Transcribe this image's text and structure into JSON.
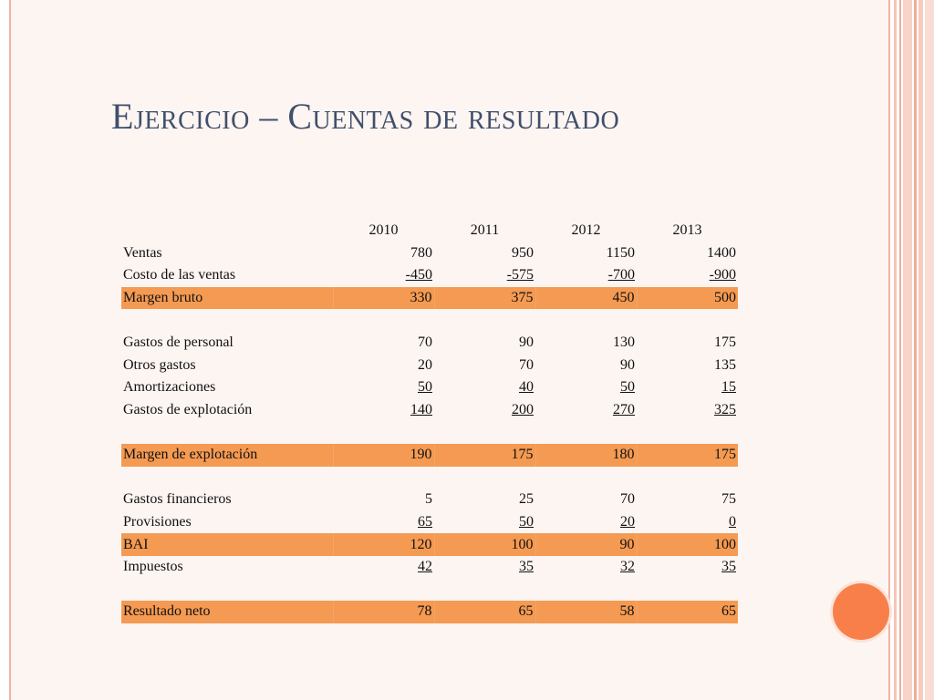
{
  "slide": {
    "title": "Ejercicio – Cuentas de resultado",
    "accent_color": "#f59a52",
    "circle_color": "#f97f4a"
  },
  "table": {
    "columns": [
      "2010",
      "2011",
      "2012",
      "2013"
    ],
    "rows": [
      {
        "label": "Ventas",
        "values": [
          "780",
          "950",
          "1150",
          "1400"
        ],
        "highlight": false,
        "underline": false
      },
      {
        "label": "Costo de las ventas",
        "values": [
          "-450",
          "-575",
          "-700",
          "-900"
        ],
        "highlight": false,
        "underline": true
      },
      {
        "label": "Margen bruto",
        "values": [
          "330",
          "375",
          "450",
          "500"
        ],
        "highlight": true,
        "underline": false
      },
      {
        "label": "",
        "values": [
          "",
          "",
          "",
          ""
        ],
        "highlight": false,
        "underline": false
      },
      {
        "label": "Gastos de personal",
        "values": [
          "70",
          "90",
          "130",
          "175"
        ],
        "highlight": false,
        "underline": false
      },
      {
        "label": "Otros gastos",
        "values": [
          "20",
          "70",
          "90",
          "135"
        ],
        "highlight": false,
        "underline": false
      },
      {
        "label": "Amortizaciones",
        "values": [
          "50",
          "40",
          "50",
          "15"
        ],
        "highlight": false,
        "underline": true
      },
      {
        "label": "Gastos de explotación",
        "values": [
          "140",
          "200",
          "270",
          "325"
        ],
        "highlight": false,
        "underline": true
      },
      {
        "label": "",
        "values": [
          "",
          "",
          "",
          ""
        ],
        "highlight": false,
        "underline": false
      },
      {
        "label": "Margen de explotación",
        "values": [
          "190",
          "175",
          "180",
          "175"
        ],
        "highlight": true,
        "underline": false
      },
      {
        "label": "",
        "values": [
          "",
          "",
          "",
          ""
        ],
        "highlight": false,
        "underline": false
      },
      {
        "label": "Gastos financieros",
        "values": [
          "5",
          "25",
          "70",
          "75"
        ],
        "highlight": false,
        "underline": false
      },
      {
        "label": "Provisiones",
        "values": [
          "65",
          "50",
          "20",
          "0"
        ],
        "highlight": false,
        "underline": true
      },
      {
        "label": "BAI",
        "values": [
          "120",
          "100",
          "90",
          "100"
        ],
        "highlight": true,
        "underline": false
      },
      {
        "label": "Impuestos",
        "values": [
          "42",
          "35",
          "32",
          "35"
        ],
        "highlight": false,
        "underline": true
      },
      {
        "label": "",
        "values": [
          "",
          "",
          "",
          ""
        ],
        "highlight": false,
        "underline": false
      },
      {
        "label": "Resultado neto",
        "values": [
          "78",
          "65",
          "58",
          "65"
        ],
        "highlight": true,
        "underline": false
      }
    ]
  }
}
